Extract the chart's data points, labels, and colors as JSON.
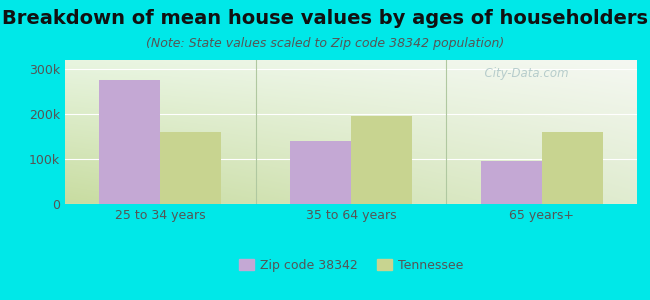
{
  "title": "Breakdown of mean house values by ages of householders",
  "subtitle": "(Note: State values scaled to Zip code 38342 population)",
  "categories": [
    "25 to 34 years",
    "35 to 64 years",
    "65 years+"
  ],
  "zip_values": [
    275000,
    140000,
    95000
  ],
  "state_values": [
    160000,
    195000,
    160000
  ],
  "zip_color": "#c4a8d4",
  "state_color": "#c8d490",
  "background_color": "#00e8e8",
  "grad_top_left": "#e8f5e0",
  "grad_top_right": "#f5f8f2",
  "grad_bottom_left": "#c8dca0",
  "grad_bottom_right": "#e0ecd0",
  "ylim": [
    0,
    320000
  ],
  "yticks": [
    0,
    100000,
    200000,
    300000
  ],
  "ytick_labels": [
    "0",
    "100k",
    "200k",
    "300k"
  ],
  "legend_zip": "Zip code 38342",
  "legend_state": "Tennessee",
  "bar_width": 0.32,
  "title_fontsize": 14,
  "subtitle_fontsize": 9,
  "tick_fontsize": 9,
  "legend_fontsize": 9,
  "watermark": "  City-Data.com",
  "grid_color": "#ffffff",
  "separator_color": "#b0c8a0",
  "text_color": "#555555"
}
